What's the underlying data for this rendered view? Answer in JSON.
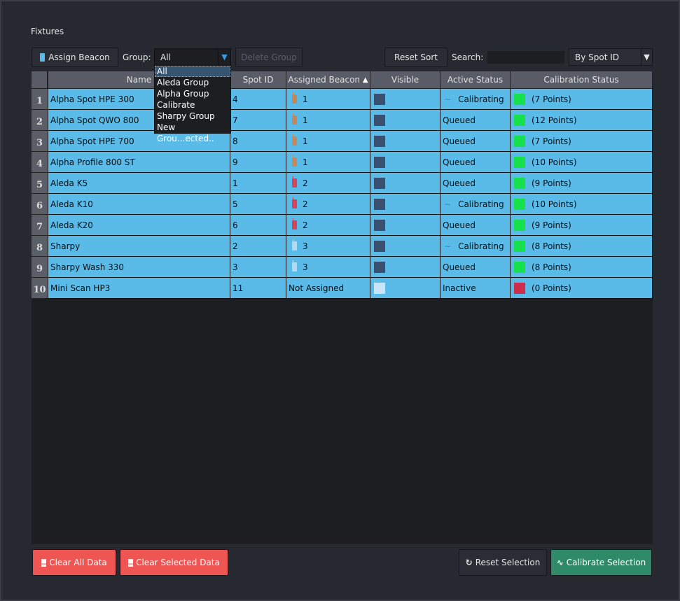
{
  "title": "Fixtures",
  "toolbar": {
    "assign_beacon": "Assign Beacon",
    "group_label": "Group:",
    "group_value": "All",
    "delete_group": "Delete Group",
    "reset_sort": "Reset Sort",
    "search_label": "Search:",
    "search_value": "",
    "sort_value": "By Spot ID"
  },
  "group_options": [
    "All",
    "Aleda Group",
    "Alpha Group",
    "Calibrate",
    "Sharpy Group",
    "New Grou...ected.."
  ],
  "columns": [
    "Name",
    "Spot ID",
    "Assigned Beacon",
    "Visible",
    "Active Status",
    "Calibration Status"
  ],
  "sort_indicator": "▲",
  "colors": {
    "beacon1": "#c8875a",
    "beacon2": "#d8415a",
    "beacon3": "#b8d8e8",
    "visible_on": "#3a5070",
    "visible_off": "#c8e4fa",
    "calib_ok": "#16e04a",
    "calib_none": "#d02c4c",
    "row_bg": "#5bbbe8"
  },
  "rows": [
    {
      "n": "1",
      "name": "Alpha Spot HPE 300",
      "spot": "4",
      "beacon": "1",
      "bcolor": "#c8875a",
      "visible": true,
      "status": "Calibrating",
      "calib": "(7 Points)",
      "ok": true
    },
    {
      "n": "2",
      "name": "Alpha Spot QWO 800",
      "spot": "7",
      "beacon": "1",
      "bcolor": "#c8875a",
      "visible": true,
      "status": "Queued",
      "calib": "(12 Points)",
      "ok": true
    },
    {
      "n": "3",
      "name": "Alpha Spot HPE 700",
      "spot": "8",
      "beacon": "1",
      "bcolor": "#c8875a",
      "visible": true,
      "status": "Queued",
      "calib": "(7 Points)",
      "ok": true
    },
    {
      "n": "4",
      "name": "Alpha Profile 800 ST",
      "spot": "9",
      "beacon": "1",
      "bcolor": "#c8875a",
      "visible": true,
      "status": "Queued",
      "calib": "(10 Points)",
      "ok": true
    },
    {
      "n": "5",
      "name": "Aleda K5",
      "spot": "1",
      "beacon": "2",
      "bcolor": "#d8415a",
      "visible": true,
      "status": "Queued",
      "calib": "(9 Points)",
      "ok": true
    },
    {
      "n": "6",
      "name": "Aleda K10",
      "spot": "5",
      "beacon": "2",
      "bcolor": "#d8415a",
      "visible": true,
      "status": "Calibrating",
      "calib": "(10 Points)",
      "ok": true
    },
    {
      "n": "7",
      "name": "Aleda K20",
      "spot": "6",
      "beacon": "2",
      "bcolor": "#d8415a",
      "visible": true,
      "status": "Queued",
      "calib": "(9 Points)",
      "ok": true
    },
    {
      "n": "8",
      "name": "Sharpy",
      "spot": "2",
      "beacon": "3",
      "bcolor": "#b8d8e8",
      "visible": true,
      "status": "Calibrating",
      "calib": "(8 Points)",
      "ok": true
    },
    {
      "n": "9",
      "name": "Sharpy Wash 330",
      "spot": "3",
      "beacon": "3",
      "bcolor": "#b8d8e8",
      "visible": true,
      "status": "Queued",
      "calib": "(8 Points)",
      "ok": true
    },
    {
      "n": "10",
      "name": "Mini Scan HP3",
      "spot": "11",
      "beacon": "Not Assigned",
      "bcolor": null,
      "visible": false,
      "status": "Inactive",
      "calib": "(0 Points)",
      "ok": false
    }
  ],
  "footer": {
    "clear_all": "Clear All Data",
    "clear_selected": "Clear Selected Data",
    "reset_selection": "Reset Selection",
    "calibrate_selection": "Calibrate Selection"
  }
}
